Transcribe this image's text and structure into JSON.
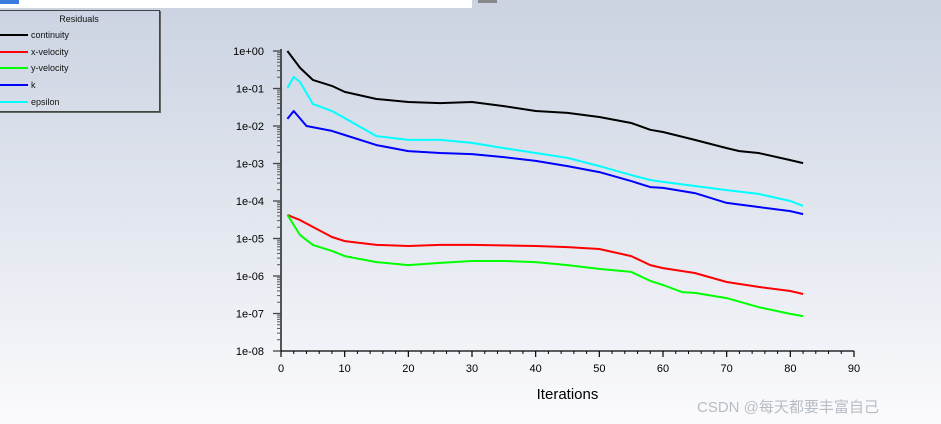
{
  "chart_data": {
    "type": "line",
    "title": "",
    "xlabel": "Iterations",
    "ylabel": "",
    "xlim": [
      0,
      90
    ],
    "ylim": [
      1e-08,
      1
    ],
    "yscale": "log",
    "x_ticks": [
      "0",
      "10",
      "20",
      "30",
      "40",
      "50",
      "60",
      "70",
      "80",
      "90"
    ],
    "y_ticks": [
      "1e+00",
      "1e-01",
      "1e-02",
      "1e-03",
      "1e-04",
      "1e-05",
      "1e-06",
      "1e-07",
      "1e-08"
    ],
    "legend": {
      "title": "Residuals",
      "placement": "top-left"
    },
    "series": [
      {
        "name": "continuity",
        "color": "#000000",
        "x": [
          1,
          3,
          5,
          8,
          10,
          15,
          20,
          25,
          30,
          35,
          40,
          45,
          50,
          55,
          58,
          60,
          65,
          70,
          72,
          75,
          80,
          82
        ],
        "log10_y": [
          0,
          -0.45,
          -0.77,
          -0.93,
          -1.09,
          -1.28,
          -1.36,
          -1.39,
          -1.36,
          -1.47,
          -1.6,
          -1.65,
          -1.76,
          -1.92,
          -2.1,
          -2.16,
          -2.37,
          -2.59,
          -2.67,
          -2.72,
          -2.91,
          -2.99
        ]
      },
      {
        "name": "x-velocity",
        "color": "#ff0000",
        "x": [
          1,
          3,
          5,
          8,
          10,
          15,
          20,
          25,
          30,
          40,
          45,
          50,
          55,
          58,
          60,
          65,
          70,
          75,
          80,
          82
        ],
        "log10_y": [
          -4.37,
          -4.51,
          -4.69,
          -4.96,
          -5.07,
          -5.17,
          -5.2,
          -5.17,
          -5.17,
          -5.2,
          -5.23,
          -5.28,
          -5.47,
          -5.71,
          -5.79,
          -5.92,
          -6.16,
          -6.29,
          -6.4,
          -6.48
        ]
      },
      {
        "name": "y-velocity",
        "color": "#00ff00",
        "x": [
          1,
          3,
          5,
          8,
          10,
          15,
          20,
          25,
          30,
          35,
          40,
          45,
          50,
          55,
          58,
          60,
          63,
          65,
          70,
          75,
          80,
          82
        ],
        "log10_y": [
          -4.37,
          -4.91,
          -5.17,
          -5.33,
          -5.47,
          -5.63,
          -5.71,
          -5.65,
          -5.6,
          -5.6,
          -5.63,
          -5.71,
          -5.81,
          -5.89,
          -6.13,
          -6.24,
          -6.43,
          -6.45,
          -6.59,
          -6.83,
          -7.01,
          -7.07
        ]
      },
      {
        "name": "k",
        "color": "#0000ff",
        "x": [
          1,
          2,
          4,
          8,
          10,
          15,
          20,
          25,
          30,
          35,
          40,
          45,
          50,
          55,
          58,
          60,
          65,
          70,
          75,
          80,
          82
        ],
        "log10_y": [
          -1.81,
          -1.6,
          -2.0,
          -2.13,
          -2.24,
          -2.51,
          -2.67,
          -2.72,
          -2.75,
          -2.83,
          -2.93,
          -3.07,
          -3.23,
          -3.47,
          -3.63,
          -3.65,
          -3.79,
          -4.05,
          -4.16,
          -4.27,
          -4.35
        ]
      },
      {
        "name": "epsilon",
        "color": "#00ffff",
        "x": [
          1,
          2,
          3,
          5,
          8,
          10,
          15,
          20,
          25,
          30,
          35,
          40,
          45,
          50,
          55,
          58,
          60,
          65,
          70,
          75,
          80,
          82
        ],
        "log10_y": [
          -0.99,
          -0.69,
          -0.83,
          -1.41,
          -1.6,
          -1.79,
          -2.27,
          -2.37,
          -2.37,
          -2.45,
          -2.59,
          -2.72,
          -2.85,
          -3.07,
          -3.31,
          -3.44,
          -3.49,
          -3.6,
          -3.71,
          -3.81,
          -4.0,
          -4.13
        ]
      }
    ]
  },
  "watermark": "CSDN @每天都要丰富自己"
}
